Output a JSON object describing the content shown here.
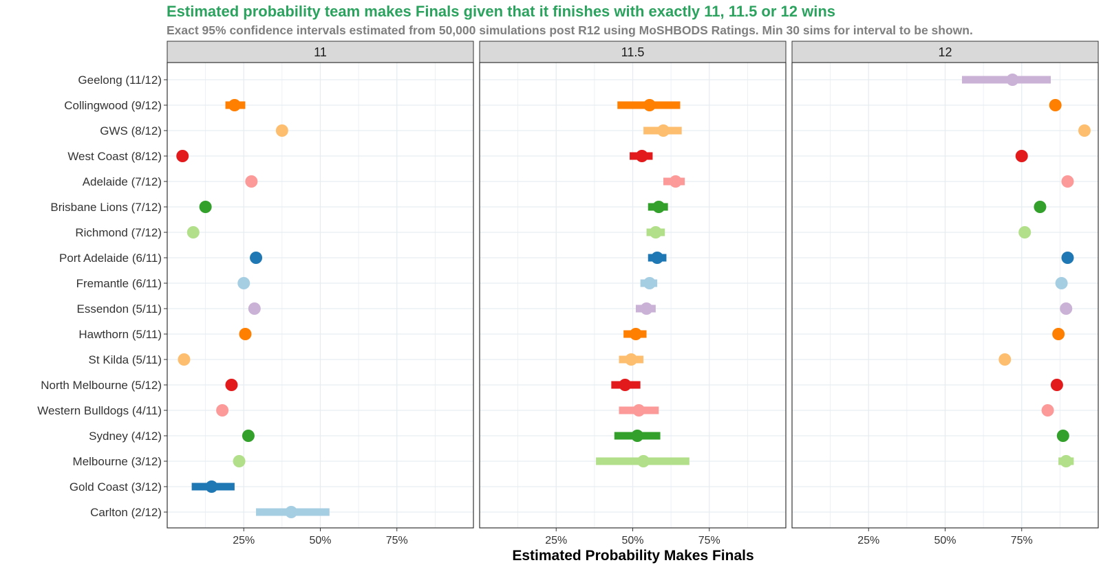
{
  "chart_data": {
    "type": "scatter",
    "subtype": "dot-with-confidence-interval, faceted",
    "title": "Estimated probability team makes Finals given that it finishes with exactly 11, 11.5 or 12 wins",
    "subtitle": "Exact 95% confidence intervals estimated from 50,000 simulations post R12 using MoSHBODS Ratings. Min 30 sims for interval to be shown.",
    "xlabel": "Estimated Probability Makes Finals",
    "ylabel": "",
    "xlim": [
      0.0,
      1.0
    ],
    "x_ticks": [
      "25%",
      "50%",
      "75%"
    ],
    "x_tick_values": [
      0.25,
      0.5,
      0.75
    ],
    "grid": true,
    "legend": "none",
    "colors": {
      "title": "#2ca25f",
      "subtitle": "#7f7f7f",
      "strip_bg": "#d9d9d9",
      "grid": "#e6edf0"
    },
    "teams": [
      {
        "label": "Geelong (11/12)",
        "color": "#cab2d6"
      },
      {
        "label": "Collingwood (9/12)",
        "color": "#ff7f00"
      },
      {
        "label": "GWS (8/12)",
        "color": "#fdbf6f"
      },
      {
        "label": "West Coast (8/12)",
        "color": "#e31a1c"
      },
      {
        "label": "Adelaide (7/12)",
        "color": "#fb9a99"
      },
      {
        "label": "Brisbane Lions (7/12)",
        "color": "#33a02c"
      },
      {
        "label": "Richmond (7/12)",
        "color": "#b2df8a"
      },
      {
        "label": "Port Adelaide (6/11)",
        "color": "#1f78b4"
      },
      {
        "label": "Fremantle (6/11)",
        "color": "#a6cee3"
      },
      {
        "label": "Essendon (5/11)",
        "color": "#cab2d6"
      },
      {
        "label": "Hawthorn (5/11)",
        "color": "#ff7f00"
      },
      {
        "label": "St Kilda (5/11)",
        "color": "#fdbf6f"
      },
      {
        "label": "North Melbourne (5/12)",
        "color": "#e31a1c"
      },
      {
        "label": "Western Bulldogs (4/11)",
        "color": "#fb9a99"
      },
      {
        "label": "Sydney (4/12)",
        "color": "#33a02c"
      },
      {
        "label": "Melbourne (3/12)",
        "color": "#b2df8a"
      },
      {
        "label": "Gold Coast (3/12)",
        "color": "#1f78b4"
      },
      {
        "label": "Carlton (2/12)",
        "color": "#a6cee3"
      }
    ],
    "panels": [
      {
        "name": "11",
        "points": [
          {
            "team": "Geelong (11/12)",
            "x": null
          },
          {
            "team": "Collingwood (9/12)",
            "x": 0.22,
            "lo": 0.19,
            "hi": 0.255
          },
          {
            "team": "GWS (8/12)",
            "x": 0.375,
            "lo": 0.36,
            "hi": 0.39
          },
          {
            "team": "West Coast (8/12)",
            "x": 0.05
          },
          {
            "team": "Adelaide (7/12)",
            "x": 0.275
          },
          {
            "team": "Brisbane Lions (7/12)",
            "x": 0.125
          },
          {
            "team": "Richmond (7/12)",
            "x": 0.085
          },
          {
            "team": "Port Adelaide (6/11)",
            "x": 0.29
          },
          {
            "team": "Fremantle (6/11)",
            "x": 0.25
          },
          {
            "team": "Essendon (5/11)",
            "x": 0.285
          },
          {
            "team": "Hawthorn (5/11)",
            "x": 0.255
          },
          {
            "team": "St Kilda (5/11)",
            "x": 0.055
          },
          {
            "team": "North Melbourne (5/12)",
            "x": 0.21
          },
          {
            "team": "Western Bulldogs (4/11)",
            "x": 0.18
          },
          {
            "team": "Sydney (4/12)",
            "x": 0.265
          },
          {
            "team": "Melbourne (3/12)",
            "x": 0.235
          },
          {
            "team": "Gold Coast (3/12)",
            "x": 0.145,
            "lo": 0.08,
            "hi": 0.22
          },
          {
            "team": "Carlton (2/12)",
            "x": 0.405,
            "lo": 0.29,
            "hi": 0.53
          }
        ]
      },
      {
        "name": "11.5",
        "points": [
          {
            "team": "Geelong (11/12)",
            "x": null
          },
          {
            "team": "Collingwood (9/12)",
            "x": 0.555,
            "lo": 0.45,
            "hi": 0.655
          },
          {
            "team": "GWS (8/12)",
            "x": 0.6,
            "lo": 0.535,
            "hi": 0.66
          },
          {
            "team": "West Coast (8/12)",
            "x": 0.53,
            "lo": 0.49,
            "hi": 0.565
          },
          {
            "team": "Adelaide (7/12)",
            "x": 0.64,
            "lo": 0.6,
            "hi": 0.67
          },
          {
            "team": "Brisbane Lions (7/12)",
            "x": 0.585,
            "lo": 0.55,
            "hi": 0.615
          },
          {
            "team": "Richmond (7/12)",
            "x": 0.575,
            "lo": 0.545,
            "hi": 0.605
          },
          {
            "team": "Port Adelaide (6/11)",
            "x": 0.58,
            "lo": 0.55,
            "hi": 0.61
          },
          {
            "team": "Fremantle (6/11)",
            "x": 0.555,
            "lo": 0.525,
            "hi": 0.58
          },
          {
            "team": "Essendon (5/11)",
            "x": 0.545,
            "lo": 0.51,
            "hi": 0.575
          },
          {
            "team": "Hawthorn (5/11)",
            "x": 0.51,
            "lo": 0.47,
            "hi": 0.545
          },
          {
            "team": "St Kilda (5/11)",
            "x": 0.495,
            "lo": 0.455,
            "hi": 0.535
          },
          {
            "team": "North Melbourne (5/12)",
            "x": 0.475,
            "lo": 0.43,
            "hi": 0.525
          },
          {
            "team": "Western Bulldogs (4/11)",
            "x": 0.52,
            "lo": 0.455,
            "hi": 0.585
          },
          {
            "team": "Sydney (4/12)",
            "x": 0.515,
            "lo": 0.44,
            "hi": 0.59
          },
          {
            "team": "Melbourne (3/12)",
            "x": 0.535,
            "lo": 0.38,
            "hi": 0.685
          },
          {
            "team": "Gold Coast (3/12)",
            "x": null
          },
          {
            "team": "Carlton (2/12)",
            "x": null
          }
        ]
      },
      {
        "name": "12",
        "points": [
          {
            "team": "Geelong (11/12)",
            "x": 0.72,
            "lo": 0.555,
            "hi": 0.845
          },
          {
            "team": "Collingwood (9/12)",
            "x": 0.86
          },
          {
            "team": "GWS (8/12)",
            "x": 0.955
          },
          {
            "team": "West Coast (8/12)",
            "x": 0.75
          },
          {
            "team": "Adelaide (7/12)",
            "x": 0.9
          },
          {
            "team": "Brisbane Lions (7/12)",
            "x": 0.81
          },
          {
            "team": "Richmond (7/12)",
            "x": 0.76
          },
          {
            "team": "Port Adelaide (6/11)",
            "x": 0.9
          },
          {
            "team": "Fremantle (6/11)",
            "x": 0.88
          },
          {
            "team": "Essendon (5/11)",
            "x": 0.895
          },
          {
            "team": "Hawthorn (5/11)",
            "x": 0.87
          },
          {
            "team": "St Kilda (5/11)",
            "x": 0.695
          },
          {
            "team": "North Melbourne (5/12)",
            "x": 0.865
          },
          {
            "team": "Western Bulldogs (4/11)",
            "x": 0.835
          },
          {
            "team": "Sydney (4/12)",
            "x": 0.885
          },
          {
            "team": "Melbourne (3/12)",
            "x": 0.895,
            "lo": 0.87,
            "hi": 0.92
          },
          {
            "team": "Gold Coast (3/12)",
            "x": null
          },
          {
            "team": "Carlton (2/12)",
            "x": null
          }
        ]
      }
    ]
  }
}
